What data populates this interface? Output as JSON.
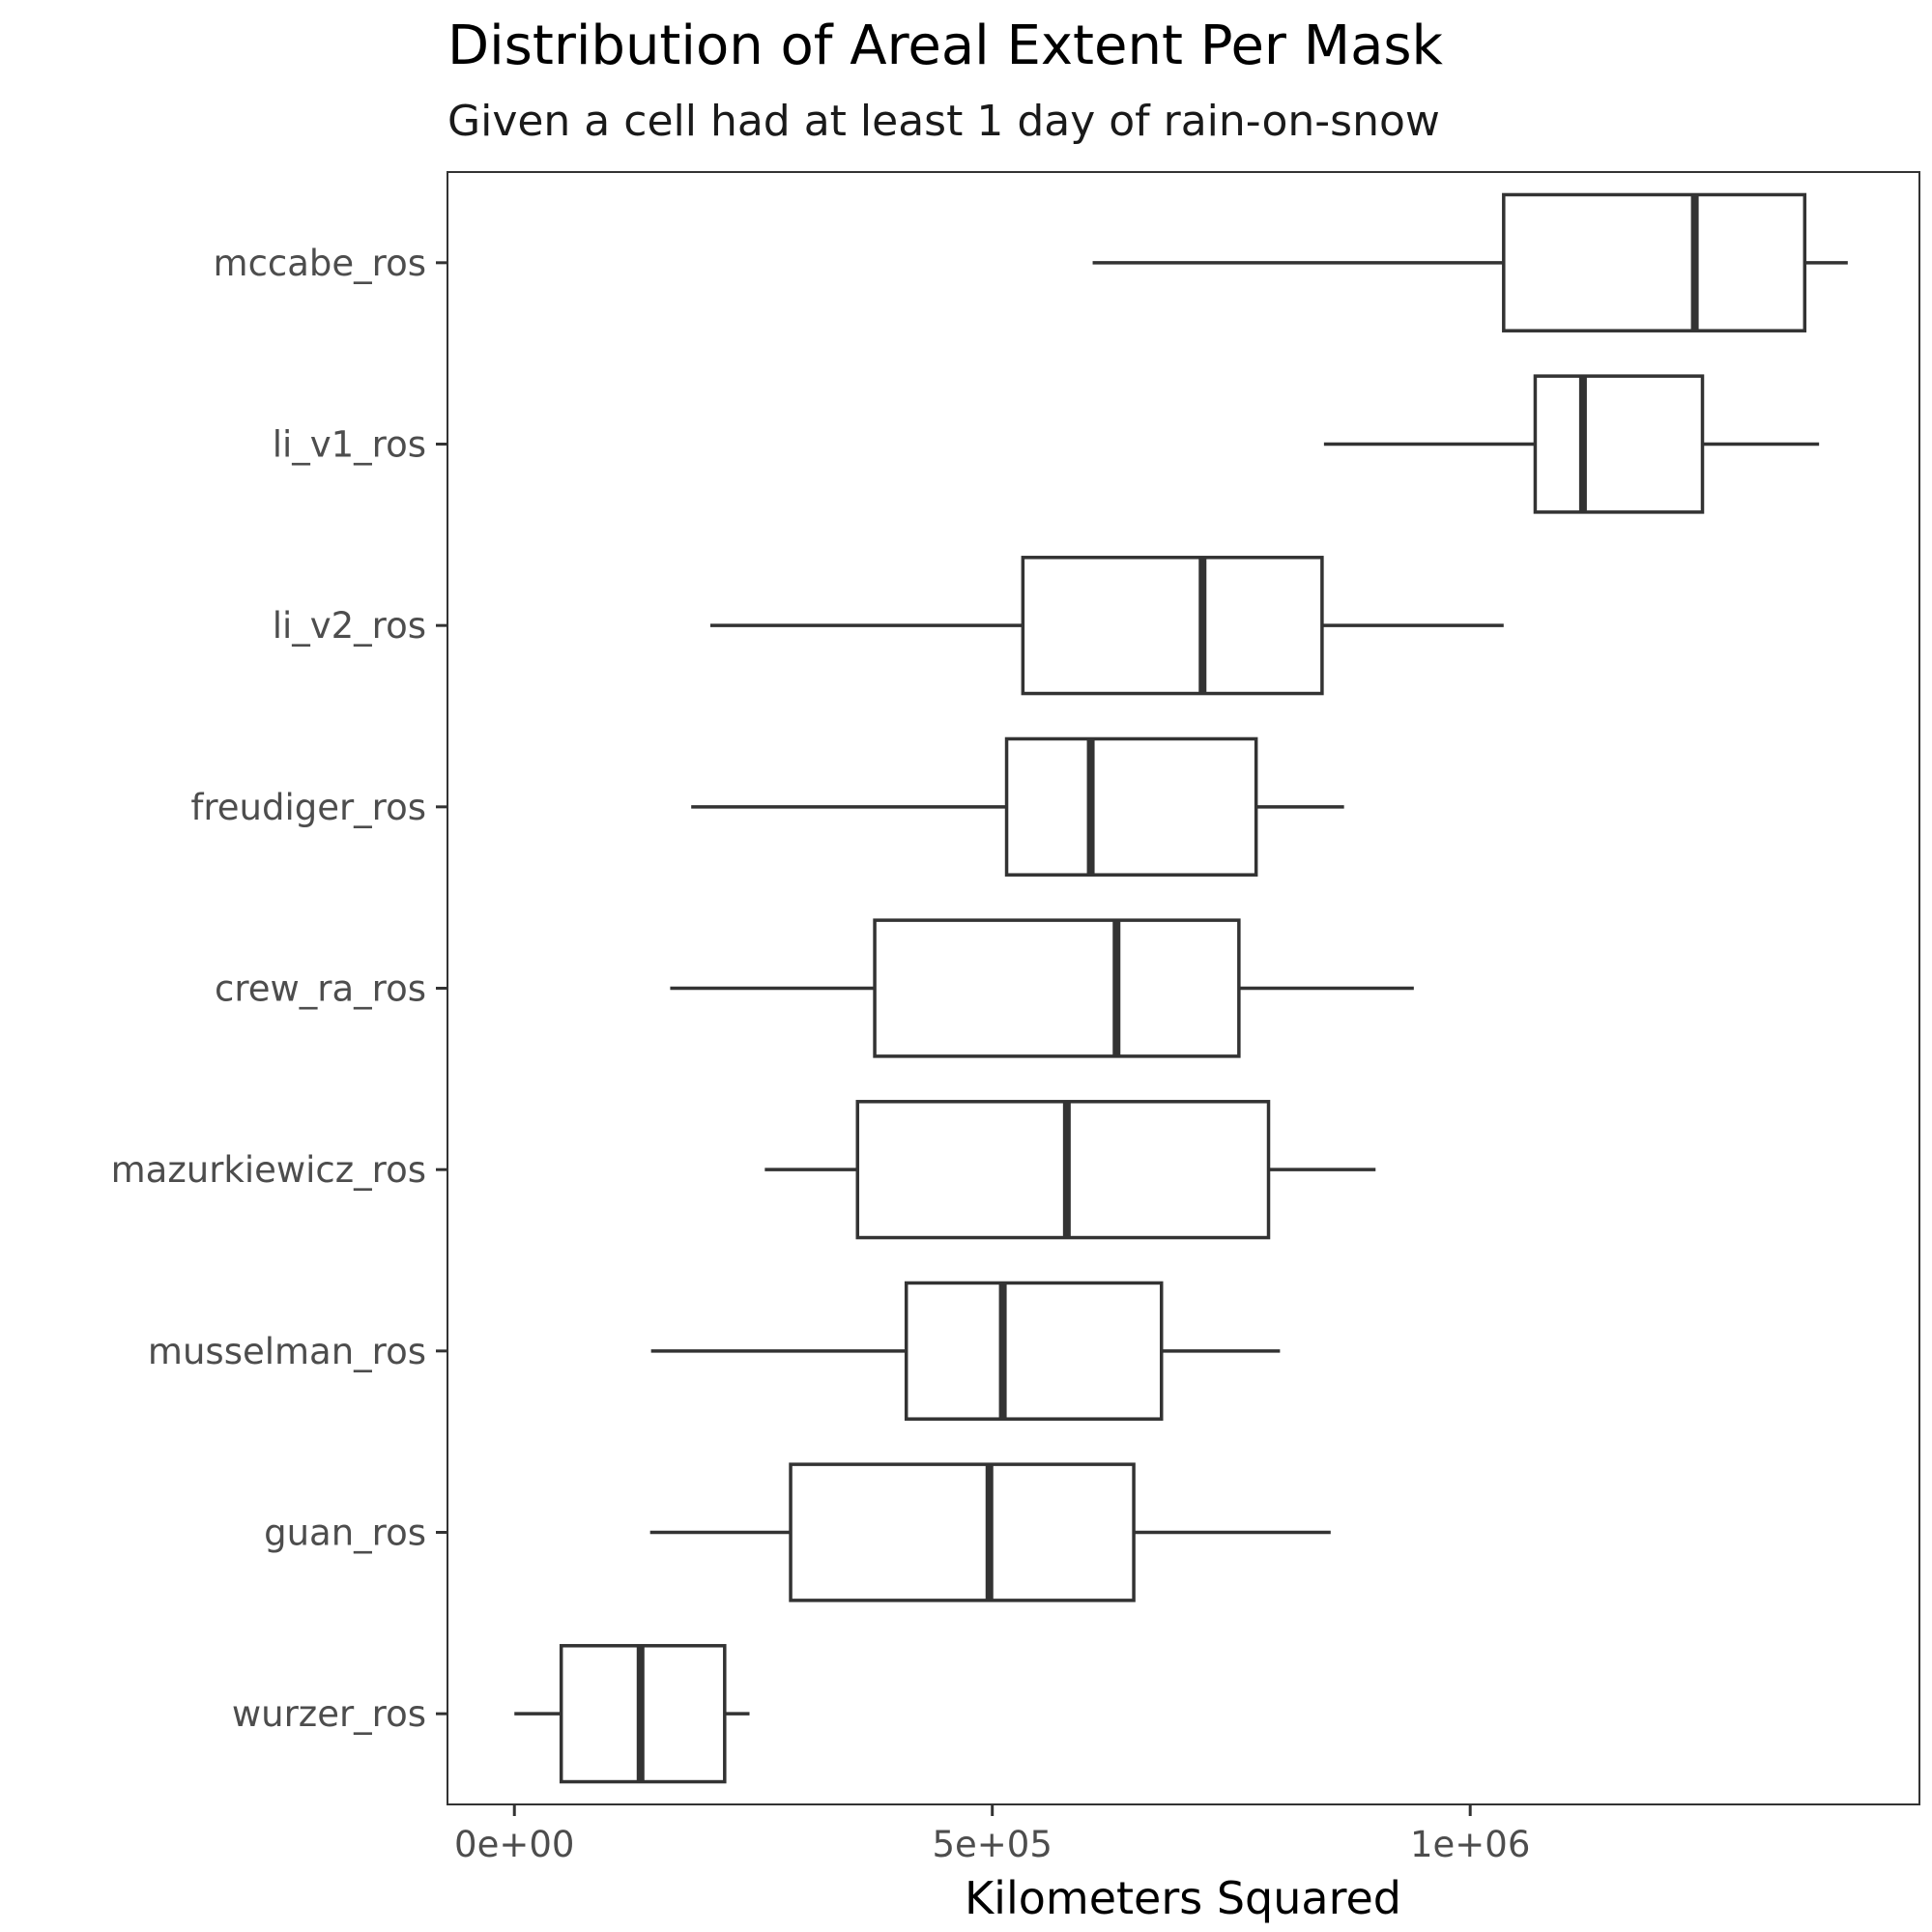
{
  "chart_data": {
    "type": "boxplot",
    "title": "Distribution of Areal Extent Per Mask",
    "subtitle": "Given a cell had at least 1 day of rain-on-snow",
    "xlabel": "Kilometers Squared",
    "ylabel": "",
    "xlim": [
      -70000,
      1470000
    ],
    "x_ticks": [
      {
        "value": 0,
        "label": "0e+00"
      },
      {
        "value": 500000,
        "label": "5e+05"
      },
      {
        "value": 1000000,
        "label": "1e+06"
      }
    ],
    "grid": false,
    "color": "#333333",
    "categories": [
      "mccabe_ros",
      "li_v1_ros",
      "li_v2_ros",
      "freudiger_ros",
      "crew_ra_ros",
      "mazurkiewicz_ros",
      "musselman_ros",
      "guan_ros",
      "wurzer_ros"
    ],
    "boxes": [
      {
        "name": "mccabe_ros",
        "min": 605000,
        "q1": 1035000,
        "median": 1235000,
        "q3": 1350000,
        "max": 1395000
      },
      {
        "name": "li_v1_ros",
        "min": 847000,
        "q1": 1068000,
        "median": 1118000,
        "q3": 1243000,
        "max": 1365000
      },
      {
        "name": "li_v2_ros",
        "min": 205000,
        "q1": 532000,
        "median": 720000,
        "q3": 845000,
        "max": 1035000
      },
      {
        "name": "freudiger_ros",
        "min": 185000,
        "q1": 515000,
        "median": 603000,
        "q3": 776000,
        "max": 868000
      },
      {
        "name": "crew_ra_ros",
        "min": 163000,
        "q1": 377000,
        "median": 630000,
        "q3": 758000,
        "max": 941000
      },
      {
        "name": "mazurkiewicz_ros",
        "min": 262000,
        "q1": 359000,
        "median": 578000,
        "q3": 789000,
        "max": 901000
      },
      {
        "name": "musselman_ros",
        "min": 143000,
        "q1": 410000,
        "median": 511000,
        "q3": 677000,
        "max": 801000
      },
      {
        "name": "guan_ros",
        "min": 142000,
        "q1": 289000,
        "median": 497000,
        "q3": 648000,
        "max": 854000
      },
      {
        "name": "wurzer_ros",
        "min": 0,
        "q1": 49000,
        "median": 132000,
        "q3": 220000,
        "max": 246000
      }
    ]
  }
}
